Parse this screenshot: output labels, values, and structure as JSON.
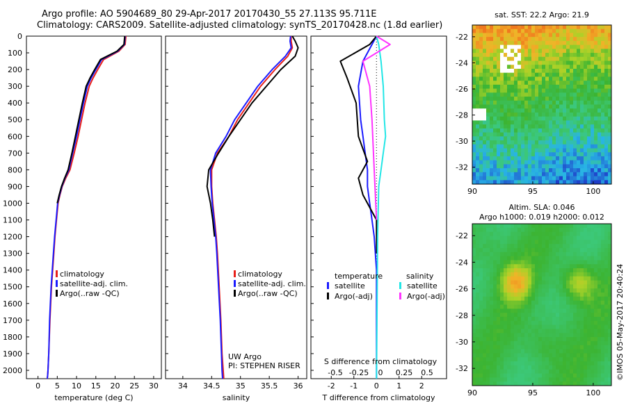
{
  "header": {
    "line1": "Argo profile: AO 5904689_80 29-Apr-2017 20170430_55 27.113S 95.711E",
    "line2": "Climatology: CARS2009. Satellite-adjusted climatology: synTS_20170428.nc (1.8d earlier)"
  },
  "credits": {
    "lab": "UW Argo",
    "pi": "PI: STEPHEN RISER",
    "stamp": "©IMOS 05-May-2017 20:40:24"
  },
  "colors": {
    "climatology": "#e8201a",
    "satellite": "#1a1aff",
    "argo": "#000000",
    "sal_satellite": "#22e6e6",
    "sal_argo": "#ff33ff"
  },
  "chart_data": [
    {
      "type": "line",
      "xlabel": "temperature (deg C)",
      "ylabel": "",
      "xlim": [
        -3,
        32
      ],
      "ylim": [
        2050,
        0
      ],
      "xticks": [
        "0",
        "5",
        "10",
        "15",
        "20",
        "25",
        "30"
      ],
      "yticks": [
        "0",
        "100",
        "200",
        "300",
        "400",
        "500",
        "600",
        "700",
        "800",
        "900",
        "1000",
        "1100",
        "1200",
        "1300",
        "1400",
        "1500",
        "1600",
        "1700",
        "1800",
        "1900",
        "2000"
      ],
      "legend": [
        "climatology",
        "satellite-adj. clim.",
        "Argo(..raw -QC)"
      ],
      "series": [
        {
          "name": "climatology",
          "x": [
            22.8,
            22.6,
            21,
            17,
            15.5,
            14.3,
            13.3,
            12.2,
            11.3,
            10.4,
            9.4,
            8.3,
            7.2,
            6.3,
            5.7,
            5.2,
            4.8,
            4.4,
            4.1,
            3.5,
            3.1,
            2.8,
            2.6,
            2.5,
            2.4
          ],
          "y": [
            0,
            50,
            90,
            140,
            200,
            250,
            300,
            400,
            500,
            600,
            700,
            800,
            850,
            900,
            950,
            1000,
            1100,
            1200,
            1300,
            1500,
            1700,
            1900,
            2000,
            2030,
            2050
          ]
        },
        {
          "name": "satellite-adj. clim.",
          "x": [
            22.6,
            22.4,
            20.7,
            16.5,
            15,
            13.8,
            12.8,
            11.8,
            10.9,
            10,
            9,
            8,
            7,
            6.2,
            5.6,
            5.1,
            4.7,
            4.3,
            4,
            3.4,
            3,
            2.8,
            2.6,
            2.5,
            2.4
          ],
          "y": [
            0,
            50,
            90,
            140,
            200,
            250,
            300,
            400,
            500,
            600,
            700,
            800,
            850,
            900,
            950,
            1000,
            1100,
            1200,
            1300,
            1500,
            1700,
            1900,
            2000,
            2030,
            2050
          ]
        },
        {
          "name": "Argo(..raw -QC)",
          "x": [
            22.5,
            22.3,
            20.5,
            16.2,
            14.7,
            13.5,
            12.5,
            11.5,
            10.6,
            9.7,
            8.8,
            7.8,
            6.9,
            6.1,
            5.5,
            5
          ],
          "y": [
            0,
            50,
            90,
            140,
            200,
            250,
            300,
            400,
            500,
            600,
            700,
            800,
            850,
            900,
            950,
            1000
          ]
        }
      ]
    },
    {
      "type": "line",
      "xlabel": "salinity",
      "ylabel": "",
      "xlim": [
        33.7,
        36.15
      ],
      "ylim": [
        2050,
        0
      ],
      "xticks": [
        "34",
        "34.5",
        "35",
        "35.5",
        "36"
      ],
      "legend": [
        "climatology",
        "satellite-adj. clim.",
        "Argo(..raw -QC)"
      ],
      "series": [
        {
          "name": "climatology",
          "x": [
            35.88,
            35.88,
            35.9,
            35.82,
            35.6,
            35.35,
            35.15,
            34.95,
            34.8,
            34.6,
            34.5,
            34.5,
            34.52,
            34.55,
            34.58,
            34.6,
            34.63,
            34.66,
            34.68,
            34.7,
            34.71
          ],
          "y": [
            0,
            30,
            70,
            120,
            200,
            300,
            400,
            500,
            600,
            700,
            800,
            900,
            1000,
            1100,
            1200,
            1300,
            1500,
            1700,
            1900,
            2000,
            2050
          ]
        },
        {
          "name": "satellite-adj. clim.",
          "x": [
            35.87,
            35.86,
            35.88,
            35.78,
            35.55,
            35.3,
            35.1,
            34.9,
            34.75,
            34.57,
            34.48,
            34.49,
            34.51,
            34.54,
            34.57,
            34.59,
            34.62,
            34.65,
            34.67,
            34.68,
            34.69
          ],
          "y": [
            0,
            30,
            70,
            120,
            200,
            300,
            400,
            500,
            600,
            700,
            800,
            900,
            1000,
            1100,
            1200,
            1300,
            1500,
            1700,
            1900,
            2000,
            2050
          ]
        },
        {
          "name": "Argo(..raw -QC)",
          "x": [
            35.9,
            35.95,
            36.0,
            35.95,
            35.7,
            35.45,
            35.2,
            35.0,
            34.8,
            34.62,
            34.45,
            34.42,
            34.48,
            34.52,
            34.55
          ],
          "y": [
            0,
            30,
            70,
            120,
            200,
            300,
            400,
            500,
            600,
            700,
            800,
            900,
            1000,
            1100,
            1200
          ]
        }
      ]
    },
    {
      "type": "line",
      "xlabel": "T difference from climatology",
      "xlabel_top": "S difference from climatology",
      "xlim": [
        -2.9,
        3.1
      ],
      "ylim": [
        2050,
        0
      ],
      "xticks": [
        "-2",
        "-1",
        "0",
        "1",
        "2"
      ],
      "xticks_top": [
        "-0.5",
        "-0.25",
        "0",
        "0.25",
        "0.5"
      ],
      "legend_titles": [
        "temperature",
        "salinity"
      ],
      "legend": [
        "satellite",
        "Argo(-adj)",
        "satellite",
        "Argo(-adj)"
      ],
      "series": [
        {
          "name": "satellite",
          "x": [
            0,
            -0.2,
            -0.6,
            -0.8,
            -0.7,
            -0.6,
            -0.5,
            -0.4,
            -0.4,
            -0.3,
            -0.2,
            -0.1,
            0,
            0,
            0
          ],
          "y": [
            0,
            50,
            150,
            300,
            500,
            600,
            700,
            800,
            900,
            1000,
            1100,
            1200,
            1400,
            1800,
            2050
          ]
        },
        {
          "name": "Argo(-adj)",
          "x": [
            0,
            -0.3,
            -1.6,
            -1.3,
            -0.9,
            -0.8,
            -0.4,
            -0.8,
            -0.6,
            0,
            0,
            0
          ],
          "y": [
            0,
            50,
            150,
            250,
            400,
            600,
            750,
            850,
            950,
            1100,
            1200,
            1300
          ]
        },
        {
          "name": "satellite",
          "x": [
            0,
            0.1,
            0.2,
            0.3,
            0.35,
            0.4,
            0.3,
            0.2,
            0.1,
            0.05,
            0
          ],
          "y": [
            0,
            50,
            150,
            300,
            500,
            600,
            700,
            800,
            900,
            1200,
            2050
          ]
        },
        {
          "name": "Argo(-adj)",
          "x": [
            0,
            0.6,
            -0.6,
            -0.3,
            -0.2,
            -0.1,
            0
          ],
          "y": [
            0,
            50,
            150,
            300,
            500,
            800,
            1100
          ]
        }
      ]
    },
    {
      "type": "heatmap",
      "title": "sat. SST: 22.2 Argo: 21.9",
      "xlim": [
        90,
        101.5
      ],
      "ylim": [
        -33.3,
        -21.1
      ],
      "xticks": [
        "90",
        "95",
        "100"
      ],
      "yticks": [
        "-22",
        "-24",
        "-26",
        "-28",
        "-30",
        "-32"
      ]
    },
    {
      "type": "heatmap",
      "title": "Altim. SLA: 0.046",
      "subtitle": "Argo h1000: 0.019 h2000: 0.012",
      "xlim": [
        90,
        101.5
      ],
      "ylim": [
        -33.3,
        -21.1
      ],
      "xticks": [
        "90",
        "95",
        "100"
      ],
      "yticks": [
        "-22",
        "-24",
        "-26",
        "-28",
        "-30",
        "-32"
      ]
    }
  ]
}
